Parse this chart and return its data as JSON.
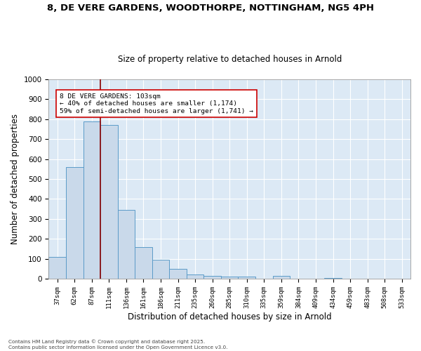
{
  "title_line1": "8, DE VERE GARDENS, WOODTHORPE, NOTTINGHAM, NG5 4PH",
  "title_line2": "Size of property relative to detached houses in Arnold",
  "xlabel": "Distribution of detached houses by size in Arnold",
  "ylabel": "Number of detached properties",
  "categories": [
    "37sqm",
    "62sqm",
    "87sqm",
    "111sqm",
    "136sqm",
    "161sqm",
    "186sqm",
    "211sqm",
    "235sqm",
    "260sqm",
    "285sqm",
    "310sqm",
    "335sqm",
    "359sqm",
    "384sqm",
    "409sqm",
    "434sqm",
    "459sqm",
    "483sqm",
    "508sqm",
    "533sqm"
  ],
  "values": [
    110,
    560,
    790,
    770,
    345,
    160,
    95,
    50,
    20,
    15,
    10,
    10,
    0,
    15,
    0,
    0,
    5,
    0,
    0,
    0,
    0
  ],
  "bar_color": "#c9d9ea",
  "bar_edge_color": "#5b9bc8",
  "vline_color": "#8b0000",
  "annotation_line1": "8 DE VERE GARDENS: 103sqm",
  "annotation_line2": "← 40% of detached houses are smaller (1,174)",
  "annotation_line3": "59% of semi-detached houses are larger (1,741) →",
  "annotation_box_facecolor": "#ffffff",
  "annotation_box_edgecolor": "#cc0000",
  "ylim": [
    0,
    1000
  ],
  "yticks": [
    0,
    100,
    200,
    300,
    400,
    500,
    600,
    700,
    800,
    900,
    1000
  ],
  "background_color": "#dce9f5",
  "fig_background": "#ffffff",
  "footer_line1": "Contains HM Land Registry data © Crown copyright and database right 2025.",
  "footer_line2": "Contains public sector information licensed under the Open Government Licence v3.0."
}
